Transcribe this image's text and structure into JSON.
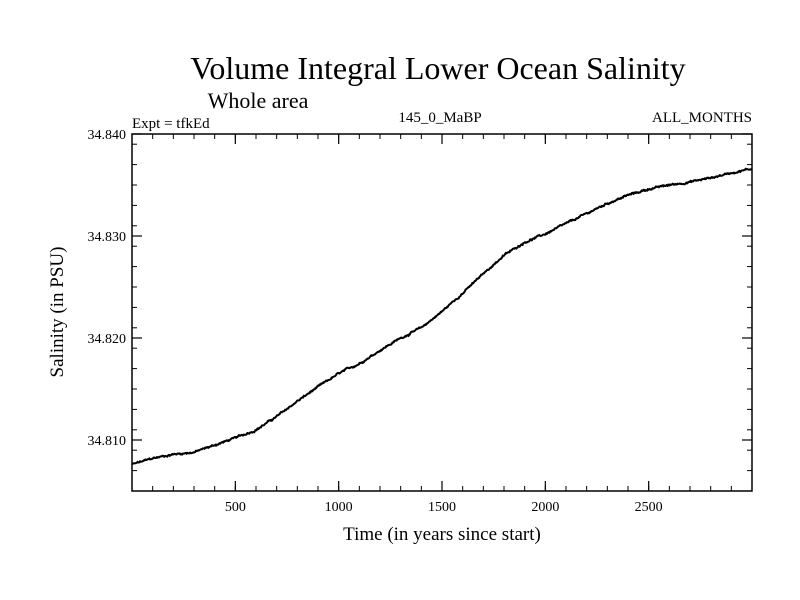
{
  "chart_data": {
    "type": "line",
    "title": "Volume Integral Lower Ocean Salinity",
    "subtitle": "Whole area",
    "annotations": {
      "left": "Expt = tfkEd",
      "center": "145_0_MaBP",
      "right": "ALL_MONTHS"
    },
    "xlabel": "Time (in years since start)",
    "ylabel": "Salinity (in PSU)",
    "xlim": [
      0,
      3000
    ],
    "ylim": [
      34.805,
      34.84
    ],
    "xticks": [
      500,
      1000,
      1500,
      2000,
      2500
    ],
    "xtick_labels": [
      "500",
      "1000",
      "1500",
      "2000",
      "2500"
    ],
    "yticks": [
      34.81,
      34.82,
      34.83,
      34.84
    ],
    "ytick_labels": [
      "34.810",
      "34.820",
      "34.830",
      "34.840"
    ],
    "grid": false,
    "series": [
      {
        "color": "#000000",
        "x": [
          0,
          100,
          200,
          300,
          400,
          500,
          600,
          700,
          800,
          900,
          1000,
          1100,
          1200,
          1300,
          1400,
          1500,
          1600,
          1700,
          1800,
          1900,
          2000,
          2100,
          2200,
          2300,
          2400,
          2500,
          2600,
          2700,
          2800,
          2900,
          3000
        ],
        "y": [
          34.8076,
          34.8082,
          34.8086,
          34.8088,
          34.8095,
          34.8102,
          34.811,
          34.8123,
          34.8138,
          34.8152,
          34.8165,
          34.8175,
          34.8188,
          34.82,
          34.821,
          34.8226,
          34.8244,
          34.8263,
          34.8281,
          34.8294,
          34.8302,
          34.8312,
          34.8322,
          34.8332,
          34.834,
          34.8346,
          34.835,
          34.8353,
          34.8357,
          34.8362,
          34.8366
        ]
      }
    ]
  }
}
